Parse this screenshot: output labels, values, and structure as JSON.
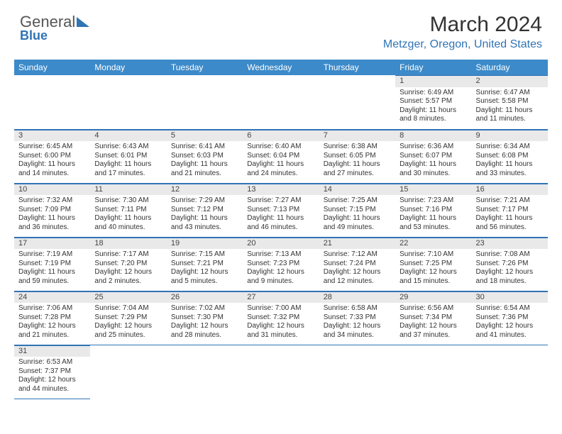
{
  "brand": {
    "part1": "General",
    "part2": "Blue"
  },
  "title": "March 2024",
  "location": "Metzger, Oregon, United States",
  "colors": {
    "accent": "#2f74b5",
    "header_bg": "#3c8ac9",
    "daynum_bg": "#e9e9e9",
    "text": "#333333"
  },
  "weekdays": [
    "Sunday",
    "Monday",
    "Tuesday",
    "Wednesday",
    "Thursday",
    "Friday",
    "Saturday"
  ],
  "weeks": [
    [
      null,
      null,
      null,
      null,
      null,
      {
        "day": "1",
        "sunrise": "Sunrise: 6:49 AM",
        "sunset": "Sunset: 5:57 PM",
        "daylight": "Daylight: 11 hours and 8 minutes."
      },
      {
        "day": "2",
        "sunrise": "Sunrise: 6:47 AM",
        "sunset": "Sunset: 5:58 PM",
        "daylight": "Daylight: 11 hours and 11 minutes."
      }
    ],
    [
      {
        "day": "3",
        "sunrise": "Sunrise: 6:45 AM",
        "sunset": "Sunset: 6:00 PM",
        "daylight": "Daylight: 11 hours and 14 minutes."
      },
      {
        "day": "4",
        "sunrise": "Sunrise: 6:43 AM",
        "sunset": "Sunset: 6:01 PM",
        "daylight": "Daylight: 11 hours and 17 minutes."
      },
      {
        "day": "5",
        "sunrise": "Sunrise: 6:41 AM",
        "sunset": "Sunset: 6:03 PM",
        "daylight": "Daylight: 11 hours and 21 minutes."
      },
      {
        "day": "6",
        "sunrise": "Sunrise: 6:40 AM",
        "sunset": "Sunset: 6:04 PM",
        "daylight": "Daylight: 11 hours and 24 minutes."
      },
      {
        "day": "7",
        "sunrise": "Sunrise: 6:38 AM",
        "sunset": "Sunset: 6:05 PM",
        "daylight": "Daylight: 11 hours and 27 minutes."
      },
      {
        "day": "8",
        "sunrise": "Sunrise: 6:36 AM",
        "sunset": "Sunset: 6:07 PM",
        "daylight": "Daylight: 11 hours and 30 minutes."
      },
      {
        "day": "9",
        "sunrise": "Sunrise: 6:34 AM",
        "sunset": "Sunset: 6:08 PM",
        "daylight": "Daylight: 11 hours and 33 minutes."
      }
    ],
    [
      {
        "day": "10",
        "sunrise": "Sunrise: 7:32 AM",
        "sunset": "Sunset: 7:09 PM",
        "daylight": "Daylight: 11 hours and 36 minutes."
      },
      {
        "day": "11",
        "sunrise": "Sunrise: 7:30 AM",
        "sunset": "Sunset: 7:11 PM",
        "daylight": "Daylight: 11 hours and 40 minutes."
      },
      {
        "day": "12",
        "sunrise": "Sunrise: 7:29 AM",
        "sunset": "Sunset: 7:12 PM",
        "daylight": "Daylight: 11 hours and 43 minutes."
      },
      {
        "day": "13",
        "sunrise": "Sunrise: 7:27 AM",
        "sunset": "Sunset: 7:13 PM",
        "daylight": "Daylight: 11 hours and 46 minutes."
      },
      {
        "day": "14",
        "sunrise": "Sunrise: 7:25 AM",
        "sunset": "Sunset: 7:15 PM",
        "daylight": "Daylight: 11 hours and 49 minutes."
      },
      {
        "day": "15",
        "sunrise": "Sunrise: 7:23 AM",
        "sunset": "Sunset: 7:16 PM",
        "daylight": "Daylight: 11 hours and 53 minutes."
      },
      {
        "day": "16",
        "sunrise": "Sunrise: 7:21 AM",
        "sunset": "Sunset: 7:17 PM",
        "daylight": "Daylight: 11 hours and 56 minutes."
      }
    ],
    [
      {
        "day": "17",
        "sunrise": "Sunrise: 7:19 AM",
        "sunset": "Sunset: 7:19 PM",
        "daylight": "Daylight: 11 hours and 59 minutes."
      },
      {
        "day": "18",
        "sunrise": "Sunrise: 7:17 AM",
        "sunset": "Sunset: 7:20 PM",
        "daylight": "Daylight: 12 hours and 2 minutes."
      },
      {
        "day": "19",
        "sunrise": "Sunrise: 7:15 AM",
        "sunset": "Sunset: 7:21 PM",
        "daylight": "Daylight: 12 hours and 5 minutes."
      },
      {
        "day": "20",
        "sunrise": "Sunrise: 7:13 AM",
        "sunset": "Sunset: 7:23 PM",
        "daylight": "Daylight: 12 hours and 9 minutes."
      },
      {
        "day": "21",
        "sunrise": "Sunrise: 7:12 AM",
        "sunset": "Sunset: 7:24 PM",
        "daylight": "Daylight: 12 hours and 12 minutes."
      },
      {
        "day": "22",
        "sunrise": "Sunrise: 7:10 AM",
        "sunset": "Sunset: 7:25 PM",
        "daylight": "Daylight: 12 hours and 15 minutes."
      },
      {
        "day": "23",
        "sunrise": "Sunrise: 7:08 AM",
        "sunset": "Sunset: 7:26 PM",
        "daylight": "Daylight: 12 hours and 18 minutes."
      }
    ],
    [
      {
        "day": "24",
        "sunrise": "Sunrise: 7:06 AM",
        "sunset": "Sunset: 7:28 PM",
        "daylight": "Daylight: 12 hours and 21 minutes."
      },
      {
        "day": "25",
        "sunrise": "Sunrise: 7:04 AM",
        "sunset": "Sunset: 7:29 PM",
        "daylight": "Daylight: 12 hours and 25 minutes."
      },
      {
        "day": "26",
        "sunrise": "Sunrise: 7:02 AM",
        "sunset": "Sunset: 7:30 PM",
        "daylight": "Daylight: 12 hours and 28 minutes."
      },
      {
        "day": "27",
        "sunrise": "Sunrise: 7:00 AM",
        "sunset": "Sunset: 7:32 PM",
        "daylight": "Daylight: 12 hours and 31 minutes."
      },
      {
        "day": "28",
        "sunrise": "Sunrise: 6:58 AM",
        "sunset": "Sunset: 7:33 PM",
        "daylight": "Daylight: 12 hours and 34 minutes."
      },
      {
        "day": "29",
        "sunrise": "Sunrise: 6:56 AM",
        "sunset": "Sunset: 7:34 PM",
        "daylight": "Daylight: 12 hours and 37 minutes."
      },
      {
        "day": "30",
        "sunrise": "Sunrise: 6:54 AM",
        "sunset": "Sunset: 7:36 PM",
        "daylight": "Daylight: 12 hours and 41 minutes."
      }
    ],
    [
      {
        "day": "31",
        "sunrise": "Sunrise: 6:53 AM",
        "sunset": "Sunset: 7:37 PM",
        "daylight": "Daylight: 12 hours and 44 minutes."
      },
      null,
      null,
      null,
      null,
      null,
      null
    ]
  ]
}
